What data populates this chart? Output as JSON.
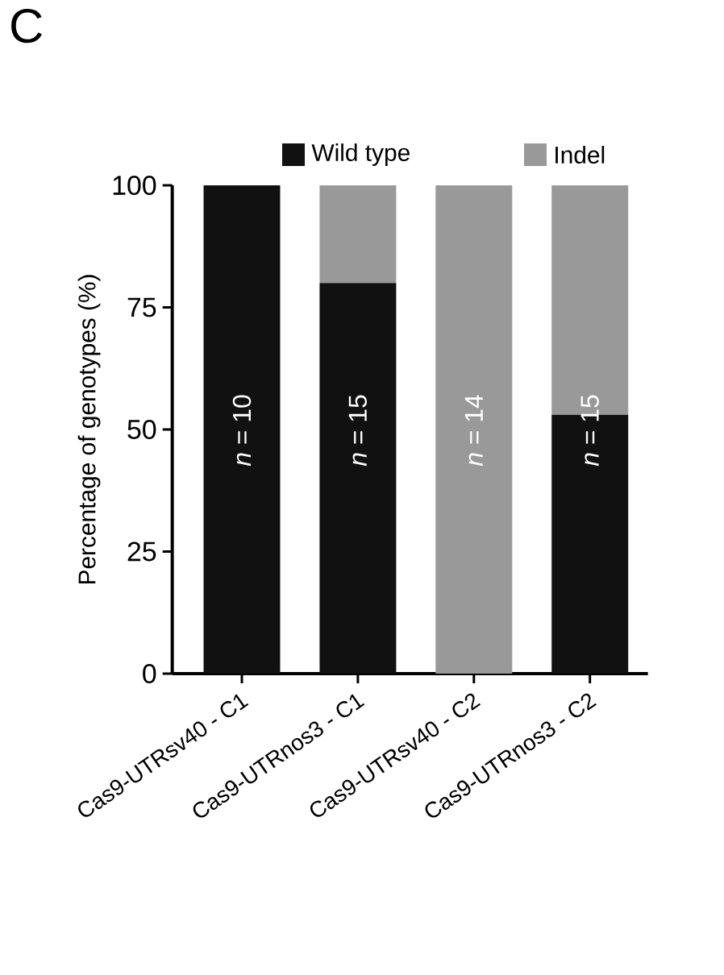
{
  "chart_data": {
    "type": "bar",
    "title": "C",
    "ylabel": "Percentage of genotypes (%)",
    "stacked": true,
    "categories": [
      "Cas9-UTRsv40 - C1",
      "Cas9-UTRnos3 - C1",
      "Cas9-UTRsv40 - C2",
      "Cas9-UTRnos3 - C2"
    ],
    "series": [
      {
        "name": "Wild type",
        "color": "#111111",
        "values": [
          100,
          80,
          0,
          53
        ]
      },
      {
        "name": "Indel",
        "color": "#999999",
        "values": [
          0,
          20,
          100,
          47
        ]
      }
    ],
    "ylim": [
      0,
      100
    ],
    "yticks": [
      0,
      25,
      50,
      75,
      100
    ],
    "grid": false,
    "legend": "top",
    "annotations": [
      "*n* = 10",
      "*n* = 15",
      "*n* = 14",
      "*n* = 15"
    ]
  }
}
